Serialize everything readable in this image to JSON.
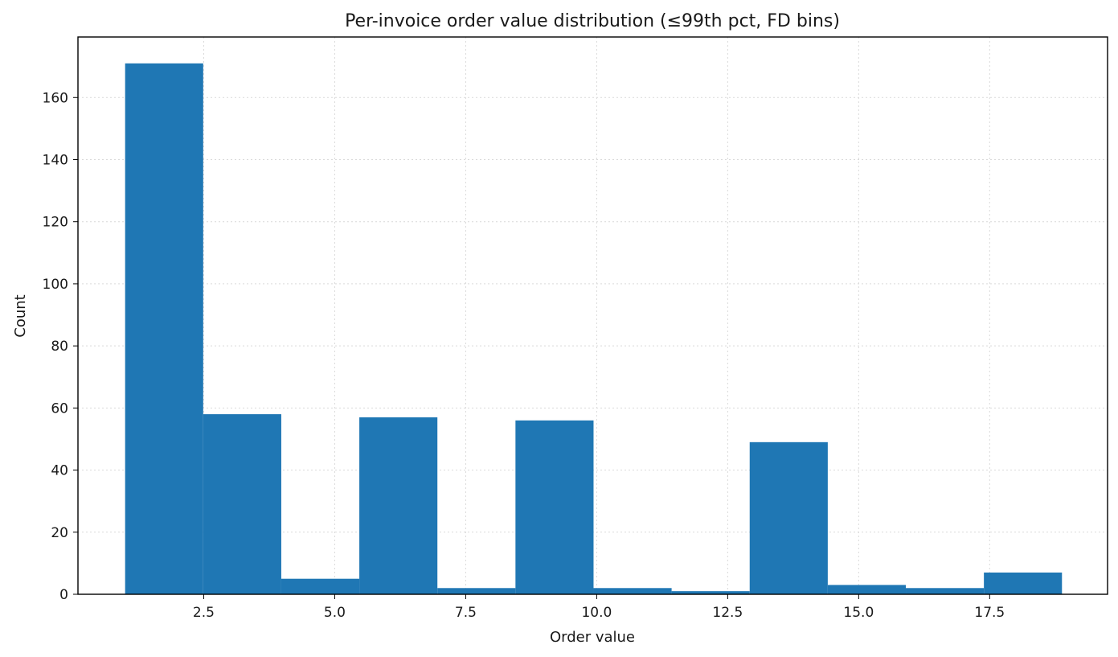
{
  "chart_data": {
    "type": "bar",
    "title": "Per-invoice order value distribution (≤99th pct, FD bins)",
    "xlabel": "Order value",
    "ylabel": "Count",
    "xlim": [
      0.1,
      19.75
    ],
    "ylim": [
      0,
      179.5
    ],
    "grid": true,
    "xticks": [
      2.5,
      5.0,
      7.5,
      10.0,
      12.5,
      15.0,
      17.5
    ],
    "xtick_labels": [
      "2.5",
      "5.0",
      "7.5",
      "10.0",
      "12.5",
      "15.0",
      "17.5"
    ],
    "yticks": [
      0,
      20,
      40,
      60,
      80,
      100,
      120,
      140,
      160
    ],
    "ytick_labels": [
      "0",
      "20",
      "40",
      "60",
      "80",
      "100",
      "120",
      "140",
      "160"
    ],
    "bins": [
      {
        "start": 1.0,
        "end": 2.49,
        "count": 171
      },
      {
        "start": 2.49,
        "end": 3.98,
        "count": 58
      },
      {
        "start": 3.98,
        "end": 5.47,
        "count": 5
      },
      {
        "start": 5.47,
        "end": 6.96,
        "count": 57
      },
      {
        "start": 6.96,
        "end": 8.45,
        "count": 2
      },
      {
        "start": 8.45,
        "end": 9.94,
        "count": 56
      },
      {
        "start": 9.94,
        "end": 11.43,
        "count": 2
      },
      {
        "start": 11.43,
        "end": 12.92,
        "count": 1
      },
      {
        "start": 12.92,
        "end": 14.41,
        "count": 49
      },
      {
        "start": 14.41,
        "end": 15.9,
        "count": 3
      },
      {
        "start": 15.9,
        "end": 17.39,
        "count": 2
      },
      {
        "start": 17.39,
        "end": 18.88,
        "count": 7
      }
    ],
    "bar_color": "#1f77b4"
  }
}
